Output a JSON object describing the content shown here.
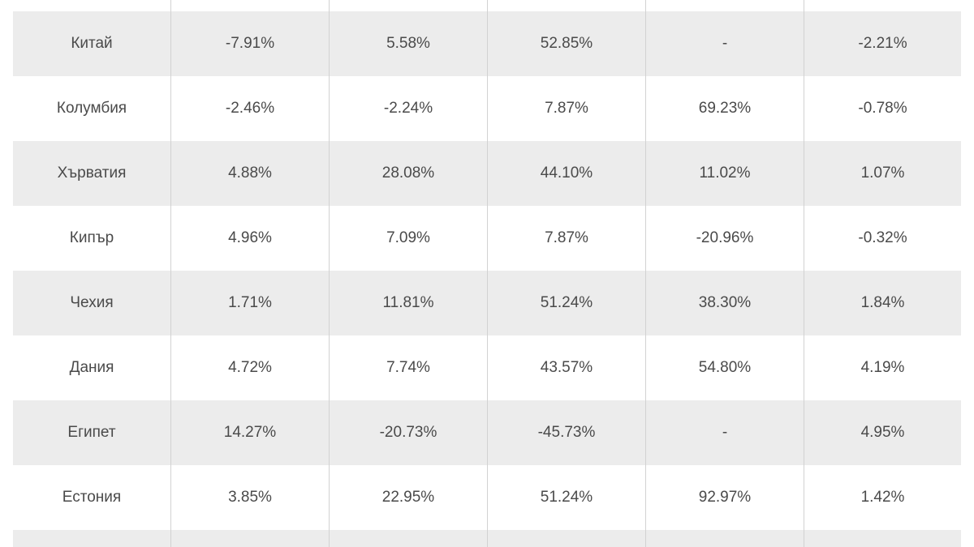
{
  "table": {
    "rows": [
      {
        "country": "Китай",
        "values": [
          "-7.91%",
          "5.58%",
          "52.85%",
          "-",
          "-2.21%"
        ]
      },
      {
        "country": "Колумбия",
        "values": [
          "-2.46%",
          "-2.24%",
          "7.87%",
          "69.23%",
          "-0.78%"
        ]
      },
      {
        "country": "Хърватия",
        "values": [
          "4.88%",
          "28.08%",
          "44.10%",
          "11.02%",
          "1.07%"
        ]
      },
      {
        "country": "Кипър",
        "values": [
          "4.96%",
          "7.09%",
          "7.87%",
          "-20.96%",
          "-0.32%"
        ]
      },
      {
        "country": "Чехия",
        "values": [
          "1.71%",
          "11.81%",
          "51.24%",
          "38.30%",
          "1.84%"
        ]
      },
      {
        "country": "Дания",
        "values": [
          "4.72%",
          "7.74%",
          "43.57%",
          "54.80%",
          "4.19%"
        ]
      },
      {
        "country": "Египет",
        "values": [
          "14.27%",
          "-20.73%",
          "-45.73%",
          "-",
          "4.95%"
        ]
      },
      {
        "country": "Естония",
        "values": [
          "3.85%",
          "22.95%",
          "51.24%",
          "92.97%",
          "1.42%"
        ]
      }
    ]
  }
}
